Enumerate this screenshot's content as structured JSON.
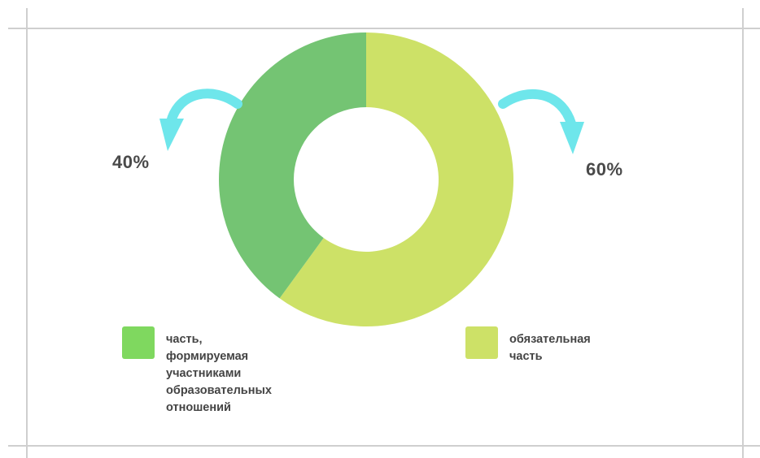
{
  "chart_data": {
    "type": "pie",
    "donut": true,
    "slices": [
      {
        "label": "обязательная часть",
        "value": 60,
        "display": "60%",
        "color": "#cde167",
        "legend_color": "#cde167"
      },
      {
        "label": "часть, формируемая участниками образовательных отношений",
        "value": 40,
        "display": "40%",
        "color": "#74c473",
        "legend_color": "#7fd85f"
      }
    ]
  },
  "legend": {
    "left_lines": [
      "часть,",
      "формируемая",
      "участниками",
      "образовательных",
      "отношений"
    ],
    "right_lines": [
      "обязательная",
      "часть"
    ]
  },
  "labels": {
    "left_pct": "40%",
    "right_pct": "60%"
  },
  "colors": {
    "arrow": "#6ee6eb",
    "rule": "#cfcfcf"
  }
}
